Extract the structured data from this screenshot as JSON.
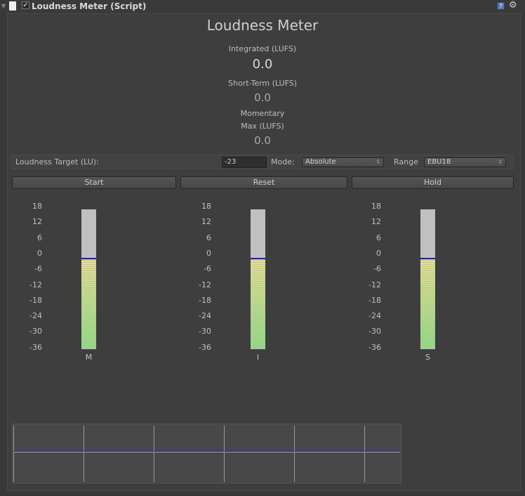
{
  "header": {
    "title": "Loudness Meter (Script)",
    "enabled": true,
    "icons": [
      "foldout-arrow-icon",
      "script-file-icon",
      "help-icon",
      "gear-icon"
    ]
  },
  "main": {
    "title": "Loudness Meter",
    "integrated": {
      "label": "Integrated (LUFS)",
      "value": "0.0"
    },
    "short_term": {
      "label": "Short-Term (LUFS)",
      "value": "0.0"
    },
    "momentary_max": {
      "label1": "Momentary",
      "label2": "Max (LUFS)",
      "value": "0.0"
    }
  },
  "controls": {
    "target_label": "Loudness Target (LU):",
    "target_value": "-23",
    "mode_label": "Mode:",
    "mode_value": "Absolute",
    "range_label": "Range",
    "range_value": "EBU18"
  },
  "buttons": {
    "start": "Start",
    "reset": "Reset",
    "hold": "Hold"
  },
  "scale": [
    "18",
    "12",
    "6",
    "0",
    "-6",
    "-12",
    "-18",
    "-24",
    "-30",
    "-36"
  ],
  "meters": [
    {
      "label": "M",
      "level_lu": 0
    },
    {
      "label": "I",
      "level_lu": 0
    },
    {
      "label": "S",
      "level_lu": 0
    }
  ],
  "colors": {
    "marker": "#1f1fb0",
    "low": "#7ee06a",
    "high": "#e8e07a",
    "empty": "#c0c0c0"
  }
}
